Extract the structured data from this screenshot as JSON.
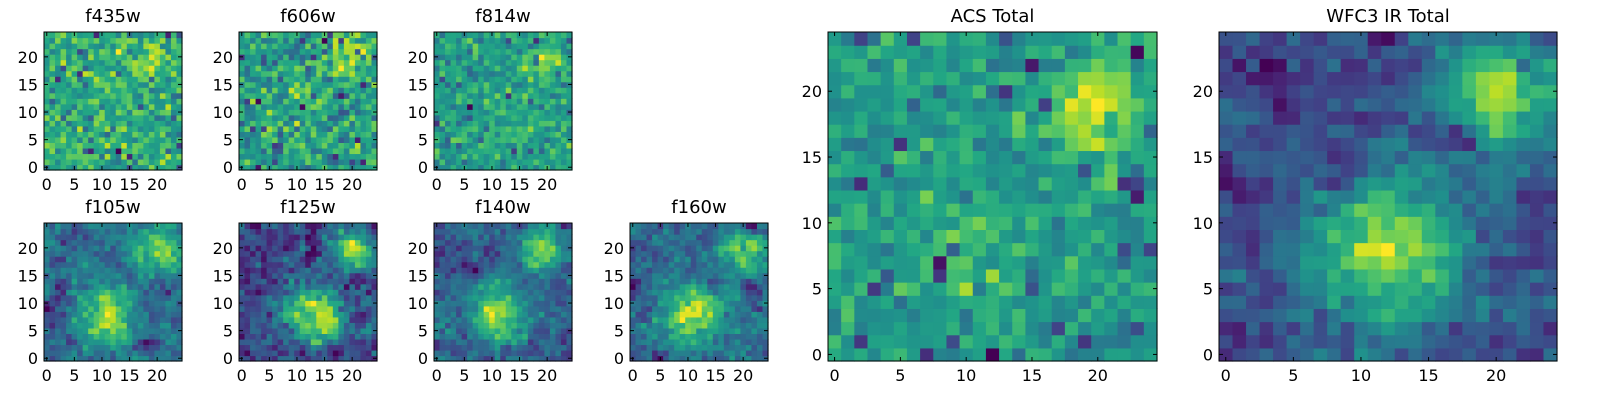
{
  "figure": {
    "colormap": "viridis",
    "grid_shape": [
      25,
      25
    ]
  },
  "chart_data": [
    {
      "type": "heatmap",
      "title": "f435w",
      "xticks": [
        "0",
        "5",
        "10",
        "15",
        "20"
      ],
      "yticks": [
        "0",
        "5",
        "10",
        "15",
        "20"
      ],
      "xlim": [
        0,
        25
      ],
      "ylim": [
        0,
        25
      ],
      "seed": 11,
      "noise": 1.0,
      "blobs": [
        [
          19,
          19.5,
          2.2,
          0.8
        ]
      ],
      "dark_frac": 0.04
    },
    {
      "type": "heatmap",
      "title": "f606w",
      "xticks": [
        "0",
        "5",
        "10",
        "15",
        "20"
      ],
      "yticks": [
        "0",
        "5",
        "10",
        "15",
        "20"
      ],
      "xlim": [
        0,
        25
      ],
      "ylim": [
        0,
        25
      ],
      "seed": 23,
      "noise": 1.0,
      "blobs": [
        [
          19,
          20,
          2.2,
          0.9
        ]
      ],
      "dark_frac": 0.05
    },
    {
      "type": "heatmap",
      "title": "f814w",
      "xticks": [
        "0",
        "5",
        "10",
        "15",
        "20"
      ],
      "yticks": [
        "0",
        "5",
        "10",
        "15",
        "20"
      ],
      "xlim": [
        0,
        25
      ],
      "ylim": [
        0,
        25
      ],
      "seed": 37,
      "noise": 0.95,
      "blobs": [
        [
          20,
          19.5,
          2.4,
          1.1
        ],
        [
          14,
          10,
          3,
          0.4
        ]
      ],
      "dark_frac": 0.04
    },
    {
      "type": "heatmap",
      "title": "ACS Total",
      "xticks": [
        "0",
        "5",
        "10",
        "15",
        "20"
      ],
      "yticks": [
        "0",
        "5",
        "10",
        "15",
        "20"
      ],
      "xlim": [
        0,
        25
      ],
      "ylim": [
        0,
        25
      ],
      "seed": 51,
      "noise": 0.7,
      "blobs": [
        [
          19.5,
          19,
          2.2,
          1.3
        ],
        [
          11,
          8,
          3,
          0.5
        ]
      ],
      "dark_frac": 0.04
    },
    {
      "type": "heatmap",
      "title": "f105w",
      "xticks": [
        "0",
        "5",
        "10",
        "15",
        "20"
      ],
      "yticks": [
        "0",
        "5",
        "10",
        "15",
        "20"
      ],
      "xlim": [
        0,
        25
      ],
      "ylim": [
        0,
        25
      ],
      "seed": 67,
      "noise": 0.55,
      "blobs": [
        [
          20,
          19.5,
          2.5,
          1.0
        ],
        [
          11,
          8,
          3.5,
          1.0
        ]
      ],
      "dark_frac": 0.02,
      "smooth": 1
    },
    {
      "type": "heatmap",
      "title": "f125w",
      "xticks": [
        "0",
        "5",
        "10",
        "15",
        "20"
      ],
      "yticks": [
        "0",
        "5",
        "10",
        "15",
        "20"
      ],
      "xlim": [
        0,
        25
      ],
      "ylim": [
        0,
        25
      ],
      "seed": 79,
      "noise": 0.55,
      "blobs": [
        [
          20,
          19.5,
          2.5,
          1.0
        ],
        [
          13,
          8,
          3.5,
          1.1
        ]
      ],
      "dark_frac": 0.02,
      "smooth": 1
    },
    {
      "type": "heatmap",
      "title": "f140w",
      "xticks": [
        "0",
        "5",
        "10",
        "15",
        "20"
      ],
      "yticks": [
        "0",
        "5",
        "10",
        "15",
        "20"
      ],
      "xlim": [
        0,
        25
      ],
      "ylim": [
        0,
        25
      ],
      "seed": 83,
      "noise": 0.55,
      "blobs": [
        [
          19,
          20,
          2.5,
          1.0
        ],
        [
          11,
          8,
          3.5,
          1.0
        ]
      ],
      "dark_frac": 0.02,
      "smooth": 1
    },
    {
      "type": "heatmap",
      "title": "f160w",
      "xticks": [
        "0",
        "5",
        "10",
        "15",
        "20"
      ],
      "yticks": [
        "0",
        "5",
        "10",
        "15",
        "20"
      ],
      "xlim": [
        0,
        25
      ],
      "ylim": [
        0,
        25
      ],
      "seed": 97,
      "noise": 0.55,
      "blobs": [
        [
          20,
          19.5,
          2.5,
          1.0
        ],
        [
          11,
          8,
          3.5,
          1.0
        ]
      ],
      "dark_frac": 0.02,
      "smooth": 1
    },
    {
      "type": "heatmap",
      "title": "WFC3 IR Total",
      "xticks": [
        "0",
        "5",
        "10",
        "15",
        "20"
      ],
      "yticks": [
        "0",
        "5",
        "10",
        "15",
        "20"
      ],
      "xlim": [
        0,
        25
      ],
      "ylim": [
        0,
        25
      ],
      "seed": 103,
      "noise": 0.4,
      "blobs": [
        [
          20,
          20,
          3,
          1.3
        ],
        [
          12,
          8,
          4,
          1.2
        ]
      ],
      "dark_frac": 0.03,
      "smooth": 1
    }
  ]
}
